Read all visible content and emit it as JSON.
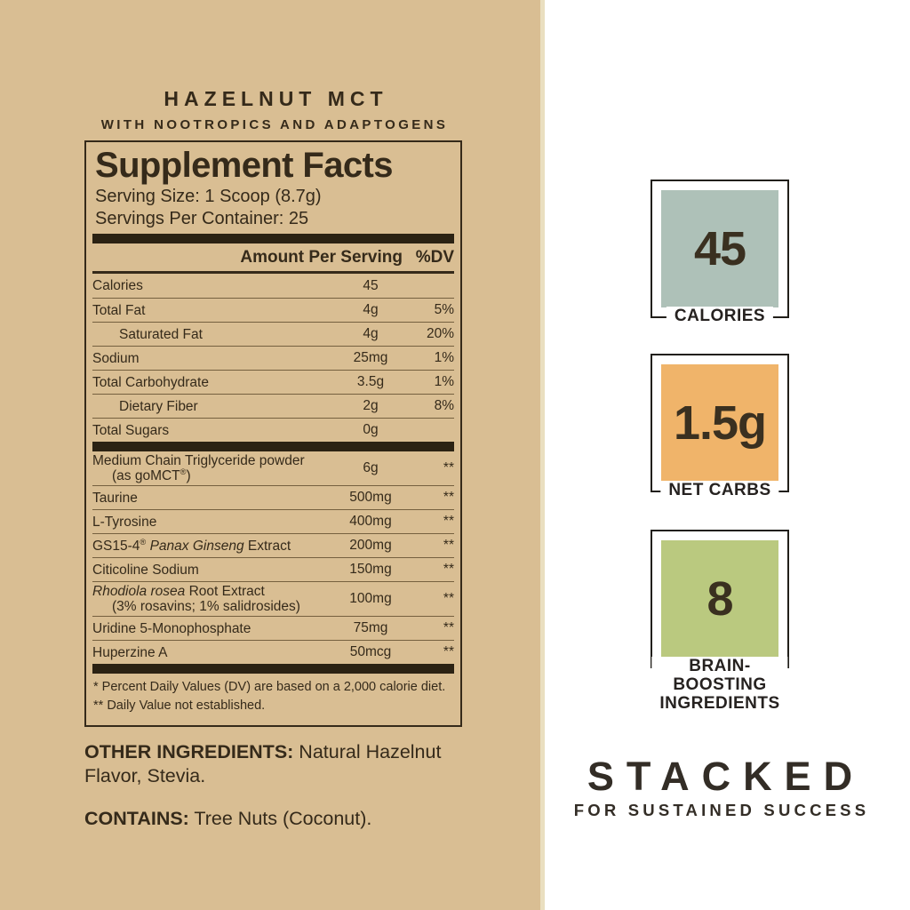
{
  "product": {
    "title": "HAZELNUT MCT",
    "subtitle": "WITH NOOTROPICS AND ADAPTOGENS"
  },
  "panel": {
    "heading": "Supplement Facts",
    "serving_size": "Serving Size: 1 Scoop (8.7g)",
    "servings_per_container": "Servings Per Container: 25",
    "header": {
      "amount": "Amount Per Serving",
      "dv": "%DV"
    },
    "rows_main": [
      {
        "name": [
          {
            "t": "Calories"
          }
        ],
        "amount": "45",
        "dv": ""
      },
      {
        "name": [
          {
            "t": "Total Fat"
          }
        ],
        "amount": "4g",
        "dv": "5%"
      },
      {
        "name": [
          {
            "t": "Saturated Fat"
          }
        ],
        "amount": "4g",
        "dv": "20%",
        "indent": true
      },
      {
        "name": [
          {
            "t": "Sodium"
          }
        ],
        "amount": "25mg",
        "dv": "1%"
      },
      {
        "name": [
          {
            "t": "Total Carbohydrate"
          }
        ],
        "amount": "3.5g",
        "dv": "1%"
      },
      {
        "name": [
          {
            "t": "Dietary Fiber"
          }
        ],
        "amount": "2g",
        "dv": "8%",
        "indent": true
      },
      {
        "name": [
          {
            "t": "Total Sugars"
          }
        ],
        "amount": "0g",
        "dv": ""
      }
    ],
    "rows_actives": [
      {
        "name": [
          {
            "t": "Medium Chain Triglyceride powder"
          }
        ],
        "sub": [
          {
            "t": "(as goMCT"
          },
          {
            "t": "®",
            "sup": true
          },
          {
            "t": ")"
          }
        ],
        "amount": "6g",
        "dv": "**"
      },
      {
        "name": [
          {
            "t": "Taurine"
          }
        ],
        "amount": "500mg",
        "dv": "**"
      },
      {
        "name": [
          {
            "t": "L-Tyrosine"
          }
        ],
        "amount": "400mg",
        "dv": "**"
      },
      {
        "name": [
          {
            "t": "GS15-4"
          },
          {
            "t": "®",
            "sup": true
          },
          {
            "t": " "
          },
          {
            "t": "Panax Ginseng",
            "i": true
          },
          {
            "t": " Extract"
          }
        ],
        "amount": "200mg",
        "dv": "**"
      },
      {
        "name": [
          {
            "t": "Citicoline Sodium"
          }
        ],
        "amount": "150mg",
        "dv": "**"
      },
      {
        "name": [
          {
            "t": "Rhodiola rosea",
            "i": true
          },
          {
            "t": " Root Extract"
          }
        ],
        "sub": [
          {
            "t": "(3% rosavins; 1% salidrosides)"
          }
        ],
        "amount": "100mg",
        "dv": "**"
      },
      {
        "name": [
          {
            "t": "Uridine 5-Monophosphate"
          }
        ],
        "amount": "75mg",
        "dv": "**"
      },
      {
        "name": [
          {
            "t": "Huperzine A"
          }
        ],
        "amount": "50mcg",
        "dv": "**"
      }
    ],
    "footnotes": [
      "* Percent Daily Values (DV) are based on a 2,000 calorie diet.",
      "** Daily Value not established."
    ]
  },
  "other_ingredients": {
    "label": "OTHER INGREDIENTS:",
    "value": " Natural Hazelnut Flavor, Stevia."
  },
  "contains": {
    "label": "CONTAINS:",
    "value": " Tree Nuts (Coconut)."
  },
  "stats": [
    {
      "value": "45",
      "color": "#aec1b8",
      "label_lines": [
        "CALORIES"
      ]
    },
    {
      "value": "1.5g",
      "color": "#f0b46a",
      "label_lines": [
        "NET CARBS"
      ]
    },
    {
      "value": "8",
      "color": "#bac97f",
      "label_lines": [
        "BRAIN-",
        "BOOSTING",
        "INGREDIENTS"
      ]
    }
  ],
  "tagline": {
    "main": "STACKED",
    "sub": "FOR SUSTAINED SUCCESS"
  },
  "colors": {
    "background_left": "#d9be93",
    "ink": "#352a1a",
    "thick_bar": "#2b2213",
    "thin_rule": "#75603f",
    "stat_border": "#211f1a",
    "right_text": "#2e2822"
  }
}
